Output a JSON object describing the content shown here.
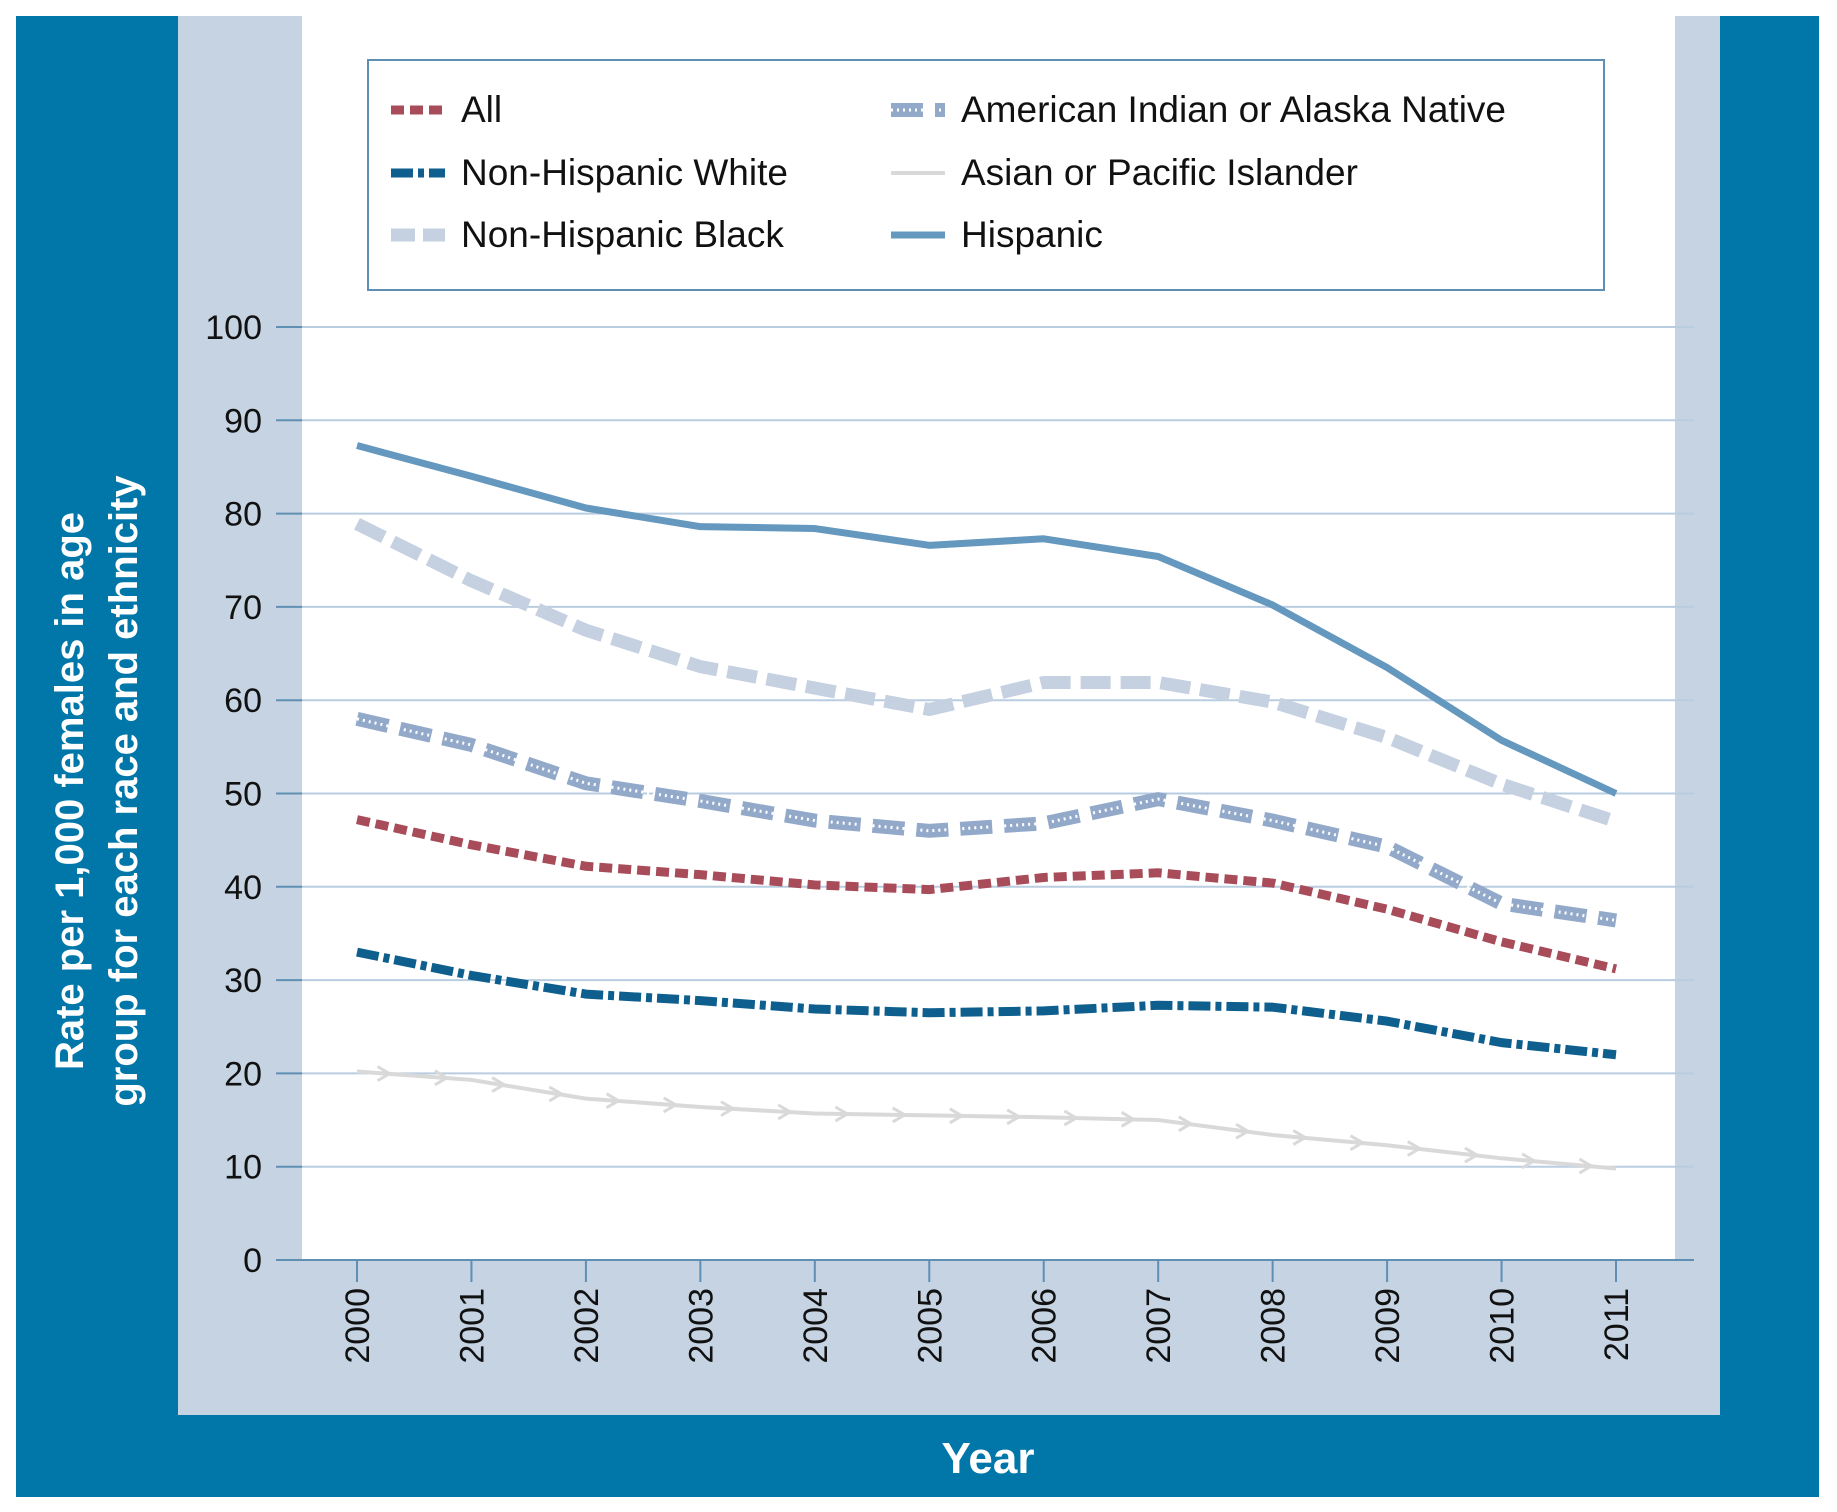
{
  "chart_data": {
    "type": "line",
    "title": "",
    "xlabel": "Year",
    "ylabel": "Rate per 1,000 females in age group for each race and ethnicity",
    "ylabel_lines": [
      "Rate per 1,000 females in age",
      "group for each race and ethnicity"
    ],
    "x": [
      2000,
      2001,
      2002,
      2003,
      2004,
      2005,
      2006,
      2007,
      2008,
      2009,
      2010,
      2011
    ],
    "x_tick_labels": [
      "2000",
      "2001",
      "2002",
      "2003",
      "2004",
      "2005",
      "2006",
      "2007",
      "2008",
      "2009",
      "2010",
      "2011"
    ],
    "ylim": [
      0,
      100
    ],
    "y_ticks": [
      0,
      10,
      20,
      30,
      40,
      50,
      60,
      70,
      80,
      90,
      100
    ],
    "grid": "horizontal",
    "legend_placement": "top",
    "series": [
      {
        "name": "All",
        "color": "#a84c5a",
        "style": "dashed",
        "values": [
          47.2,
          44.5,
          42.2,
          41.3,
          40.2,
          39.7,
          41.0,
          41.5,
          40.4,
          37.6,
          34.1,
          31.2
        ]
      },
      {
        "name": "Non-Hispanic White",
        "color": "#0e5f8e",
        "style": "dash-dot",
        "values": [
          33.0,
          30.5,
          28.5,
          27.8,
          26.9,
          26.5,
          26.7,
          27.3,
          27.1,
          25.6,
          23.3,
          22.0
        ]
      },
      {
        "name": "Non-Hispanic Black",
        "color": "#c5d0e0",
        "style": "long-dash",
        "values": [
          78.9,
          72.8,
          67.5,
          63.6,
          61.3,
          59.0,
          61.9,
          61.9,
          59.8,
          56.0,
          51.0,
          47.0
        ]
      },
      {
        "name": "American Indian or Alaska Native",
        "color": "#93a9c9",
        "style": "dashed-dotted-core",
        "values": [
          58.0,
          55.2,
          51.1,
          49.2,
          47.1,
          46.0,
          46.8,
          49.4,
          47.1,
          44.3,
          38.2,
          36.4
        ]
      },
      {
        "name": "Asian or Pacific Islander",
        "color": "#d9d9d9",
        "style": "arrows",
        "values": [
          20.2,
          19.3,
          17.3,
          16.4,
          15.7,
          15.5,
          15.3,
          15.0,
          13.4,
          12.3,
          10.9,
          9.8
        ]
      },
      {
        "name": "Hispanic",
        "color": "#6598bf",
        "style": "solid",
        "values": [
          87.3,
          84.0,
          80.6,
          78.6,
          78.4,
          76.6,
          77.3,
          75.4,
          70.2,
          63.5,
          55.7,
          50.0
        ]
      }
    ]
  },
  "colors": {
    "frame": "#0077a8",
    "panel": "#c5d3e2",
    "grid": "#b9cde0"
  }
}
